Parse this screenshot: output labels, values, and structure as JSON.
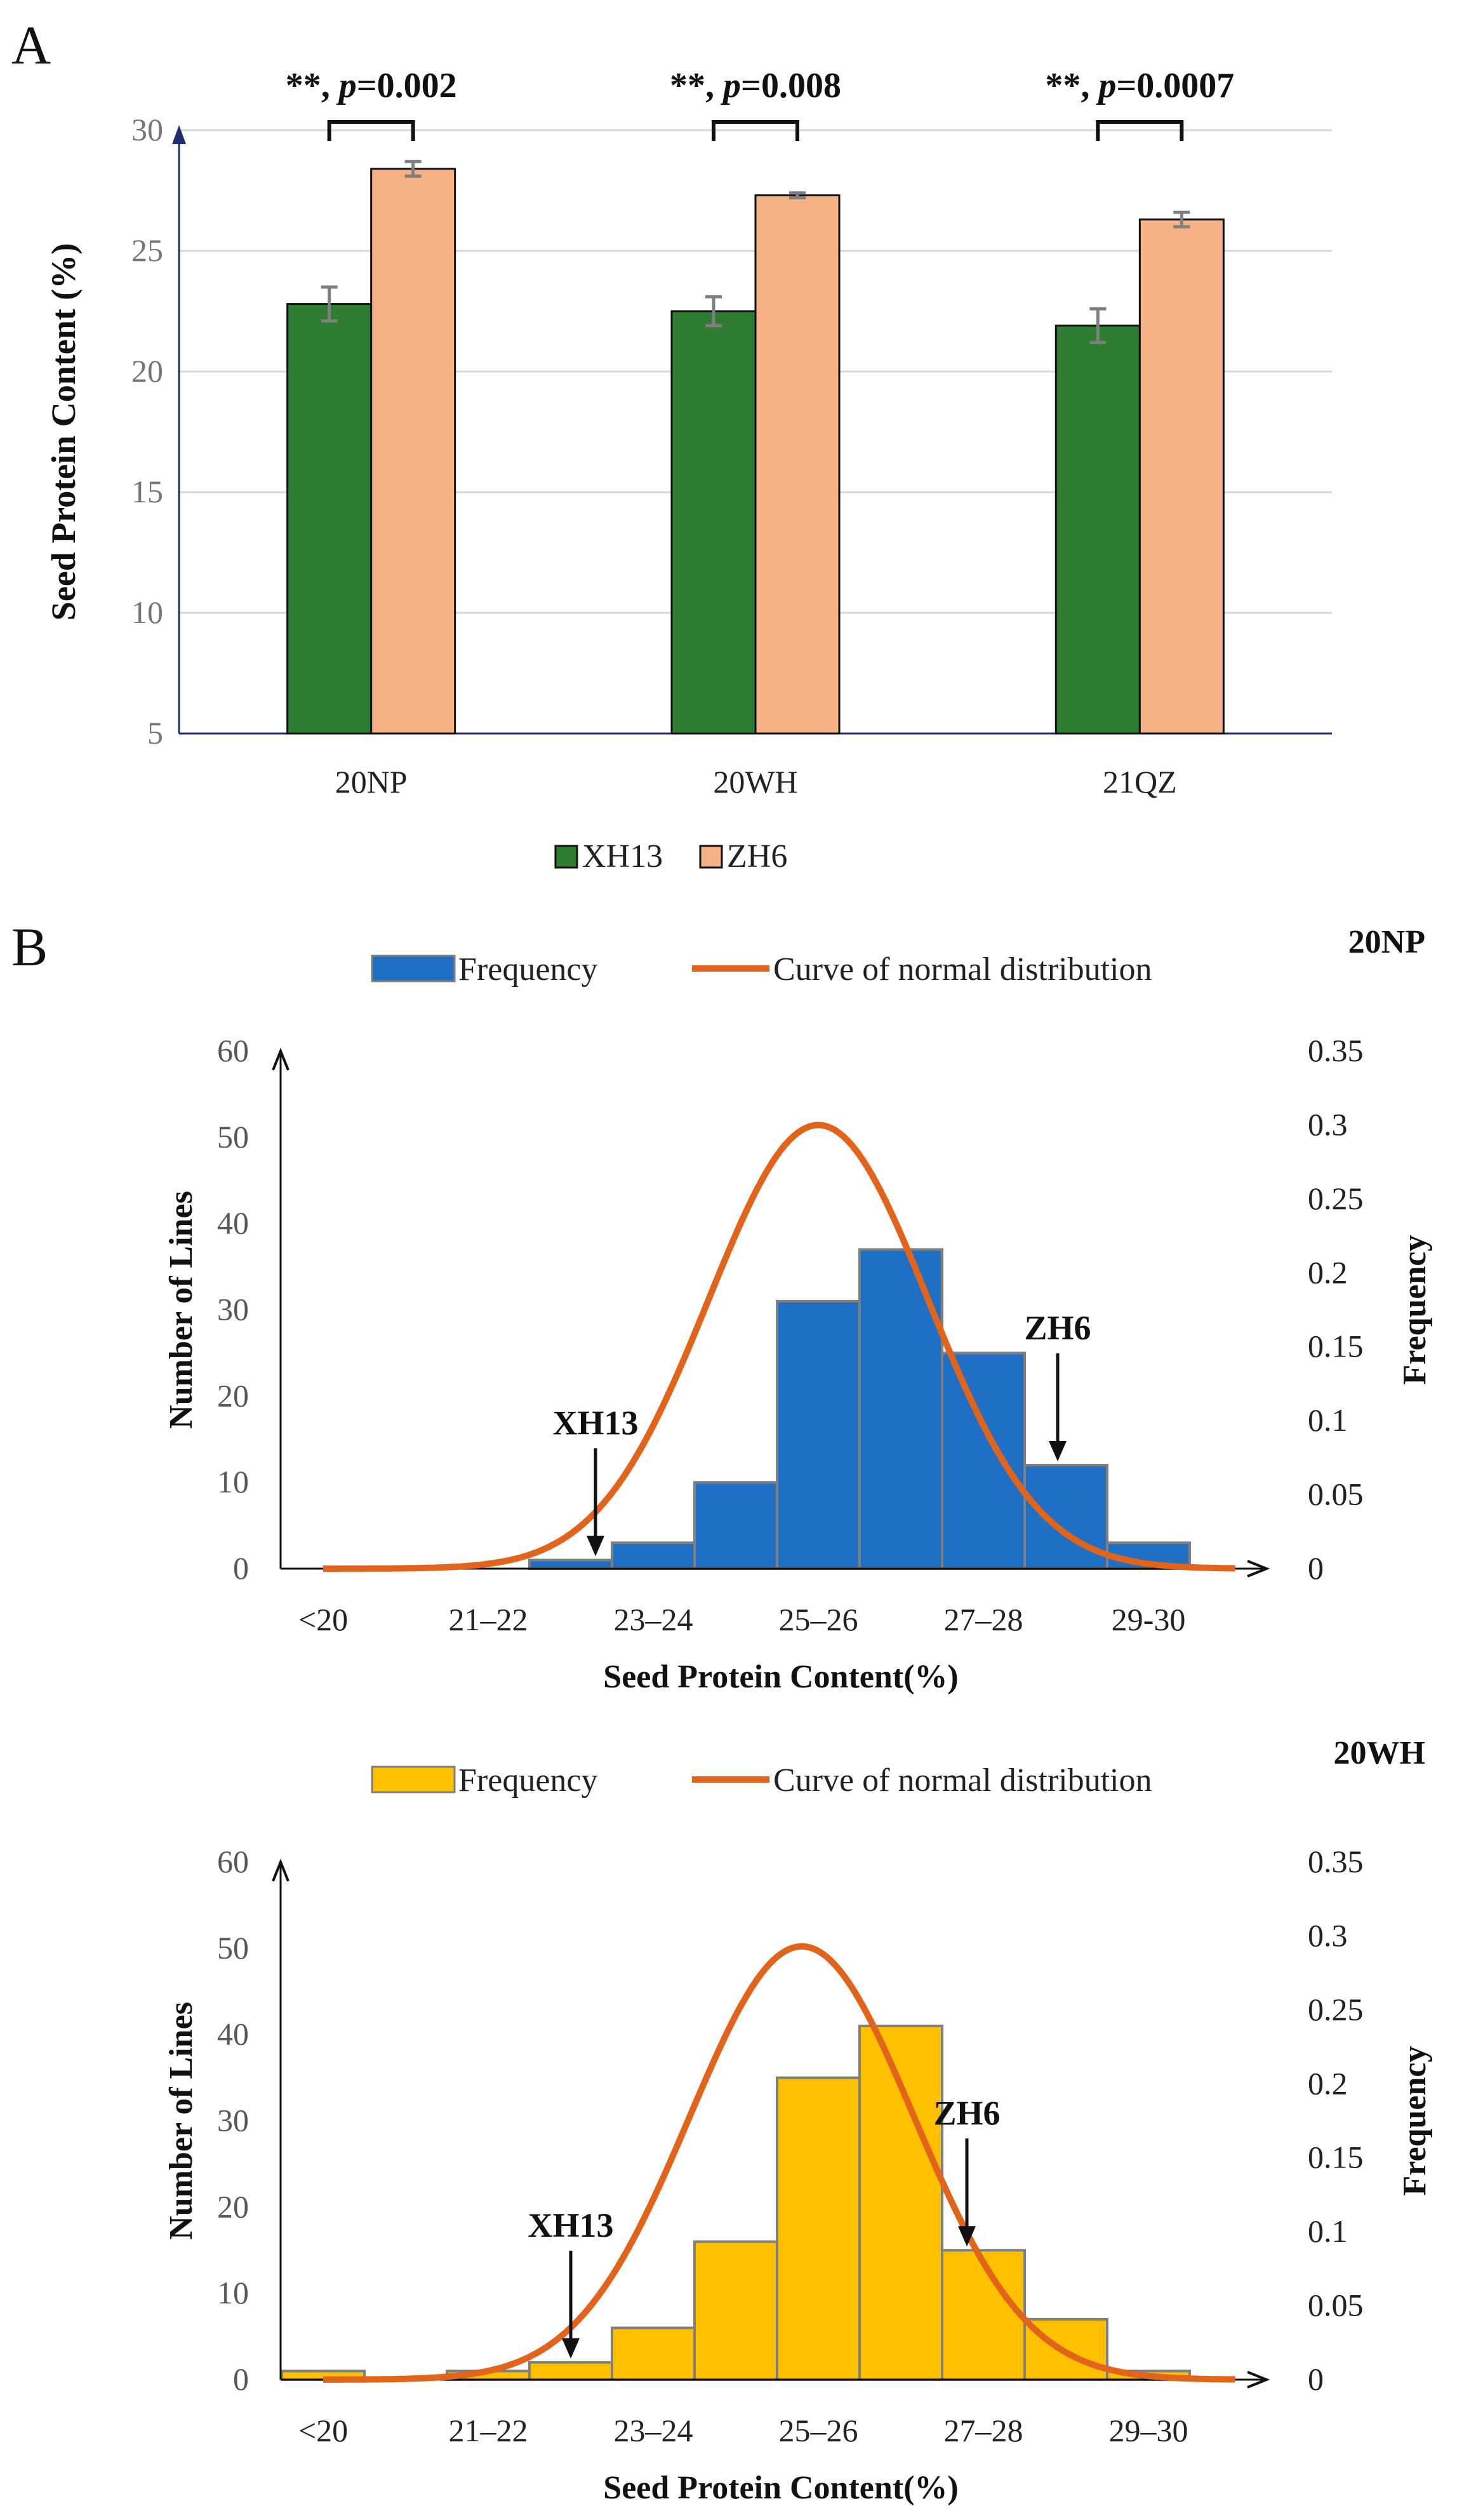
{
  "panel_a": {
    "letter": "A",
    "chart_data": {
      "type": "bar",
      "title": "",
      "ylabel": "Seed Protein Content (%)",
      "xlabel": "",
      "categories": [
        "20NP",
        "20WH",
        "21QZ"
      ],
      "ylim": [
        5,
        30
      ],
      "yticks": [
        5,
        10,
        15,
        20,
        25,
        30
      ],
      "series": [
        {
          "name": "XH13",
          "color": "#2e7d32",
          "values": [
            22.8,
            22.5,
            21.9
          ],
          "errors": [
            0.7,
            0.6,
            0.7
          ]
        },
        {
          "name": "ZH6",
          "color": "#f4b183",
          "values": [
            28.4,
            27.3,
            26.3
          ],
          "errors": [
            0.3,
            0.1,
            0.3
          ]
        }
      ],
      "significance": [
        "**, p=0.002",
        "**, p=0.008",
        "**, p=0.0007"
      ],
      "legend": "bottom"
    }
  },
  "panel_b": {
    "letter": "B",
    "charts": [
      {
        "type": "bar+line",
        "site": "20NP",
        "bar_color": "#1f6fc5",
        "legend": {
          "bar": "Frequency",
          "line": "Curve of normal distribution"
        },
        "xlabel": "Seed Protein Content(%)",
        "ylabel_left": "Number of Lines",
        "ylabel_right": "Frequency",
        "x_tick_labels": [
          "<20",
          "21–22",
          "23–24",
          "25–26",
          "27–28",
          "29-30"
        ],
        "bin_values": [
          0,
          0,
          0,
          1,
          3,
          10,
          31,
          37,
          25,
          12,
          3
        ],
        "ylim_left": [
          0,
          60
        ],
        "yticks_left": [
          0,
          10,
          20,
          30,
          40,
          50,
          60
        ],
        "ylim_right": [
          0,
          0.35
        ],
        "yticks_right": [
          "0",
          "0.05",
          "0.1",
          "0.15",
          "0.2",
          "0.25",
          "0.3",
          "0.35"
        ],
        "curve_mean": 25.5,
        "curve_sd": 1.33,
        "curve_peak": 0.3,
        "arrows": [
          {
            "label": "XH13",
            "position": 22.8
          },
          {
            "label": "ZH6",
            "position": 28.4
          }
        ]
      },
      {
        "type": "bar+line",
        "site": "20WH",
        "bar_color": "#ffc000",
        "legend": {
          "bar": "Frequency",
          "line": "Curve of normal distribution"
        },
        "xlabel": "Seed Protein Content(%)",
        "ylabel_left": "Number of Lines",
        "ylabel_right": "Frequency",
        "x_tick_labels": [
          "<20",
          "21–22",
          "23–24",
          "25–26",
          "27–28",
          "29–30"
        ],
        "bin_values": [
          1,
          0,
          1,
          2,
          6,
          16,
          35,
          41,
          15,
          7,
          1
        ],
        "ylim_left": [
          0,
          60
        ],
        "yticks_left": [
          0,
          10,
          20,
          30,
          40,
          50,
          60
        ],
        "ylim_right": [
          0,
          0.35
        ],
        "yticks_right": [
          "0",
          "0.05",
          "0.1",
          "0.15",
          "0.2",
          "0.25",
          "0.3",
          "0.35"
        ],
        "curve_mean": 25.3,
        "curve_sd": 1.36,
        "curve_peak": 0.293,
        "arrows": [
          {
            "label": "XH13",
            "position": 22.5
          },
          {
            "label": "ZH6",
            "position": 27.3
          }
        ]
      }
    ]
  }
}
